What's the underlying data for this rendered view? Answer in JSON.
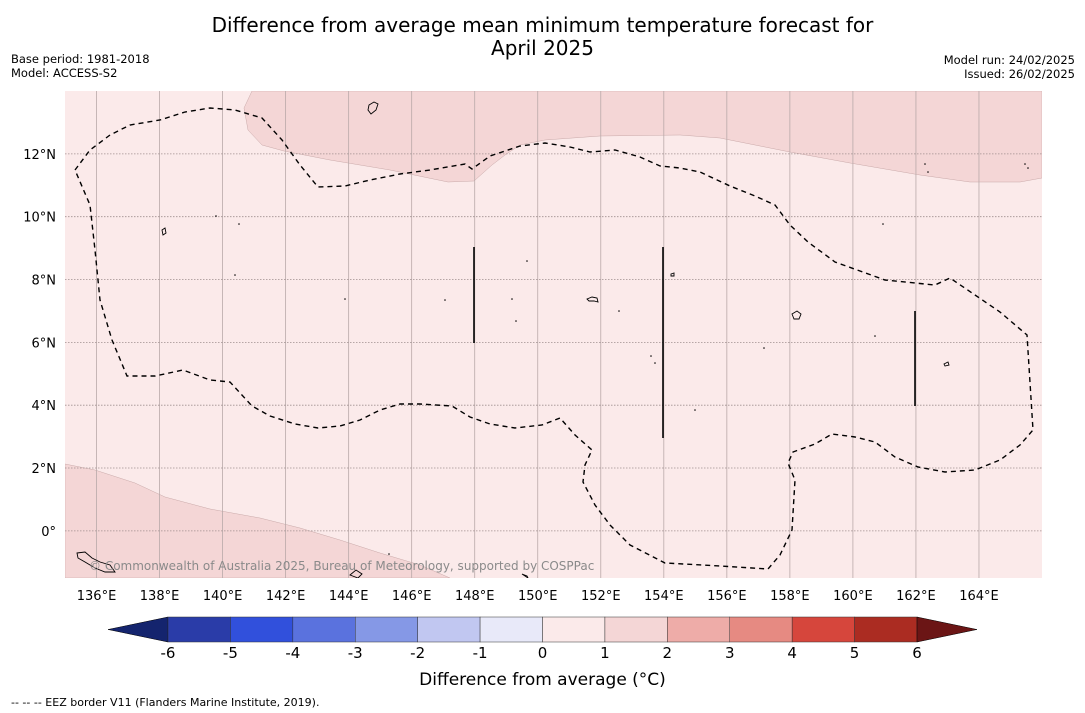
{
  "title_line1": "Difference from average mean minimum temperature forecast for",
  "title_line2": "April 2025",
  "meta_left": {
    "base_period": "Base period: 1981-2018",
    "model": "Model: ACCESS-S2"
  },
  "meta_right": {
    "model_run": "Model run: 24/02/2025",
    "issued": "Issued: 26/02/2025"
  },
  "copyright": "© Commonwealth of Australia 2025, Bureau of Meteorology, supported by COSPPac",
  "colorbar_label": "Difference from average (°C)",
  "footnote": "-- -- -- EEZ border V11 (Flanders Marine Institute, 2019).",
  "chart_data": {
    "type": "heatmap",
    "xlim": [
      135,
      166
    ],
    "ylim": [
      -1.5,
      14
    ],
    "x_ticks": [
      "136°E",
      "138°E",
      "140°E",
      "142°E",
      "144°E",
      "146°E",
      "148°E",
      "150°E",
      "152°E",
      "154°E",
      "156°E",
      "158°E",
      "160°E",
      "162°E",
      "164°E"
    ],
    "x_tick_values": [
      136,
      138,
      140,
      142,
      144,
      146,
      148,
      150,
      152,
      154,
      156,
      158,
      160,
      162,
      164
    ],
    "y_ticks": [
      "0°",
      "2°N",
      "4°N",
      "6°N",
      "8°N",
      "10°N",
      "12°N"
    ],
    "y_tick_values": [
      0,
      2,
      4,
      6,
      8,
      10,
      12
    ],
    "grid": true,
    "colorbar": {
      "ticks": [
        "-6",
        "-5",
        "-4",
        "-3",
        "-2",
        "-1",
        "0",
        "1",
        "2",
        "3",
        "4",
        "5",
        "6"
      ],
      "tick_values": [
        -6,
        -5,
        -4,
        -3,
        -2,
        -1,
        0,
        1,
        2,
        3,
        4,
        5,
        6
      ],
      "colors": [
        "#14246e",
        "#2a3ca8",
        "#3150dc",
        "#5a72de",
        "#8598e6",
        "#c1c7f1",
        "#e8e9f9",
        "#fbeaea",
        "#f4d6d6",
        "#eeaca8",
        "#e68a82",
        "#d6463c",
        "#ab2c22",
        "#6b1515"
      ]
    },
    "regions": [
      {
        "category": "0 to 1",
        "color": "#fbeaea",
        "area": "most of domain"
      },
      {
        "category": "1 to 2",
        "color": "#f4d6d6",
        "area": "north of ~12°N"
      },
      {
        "category": "1 to 2",
        "color": "#f4d6d6",
        "area": "southwest corner"
      }
    ]
  }
}
